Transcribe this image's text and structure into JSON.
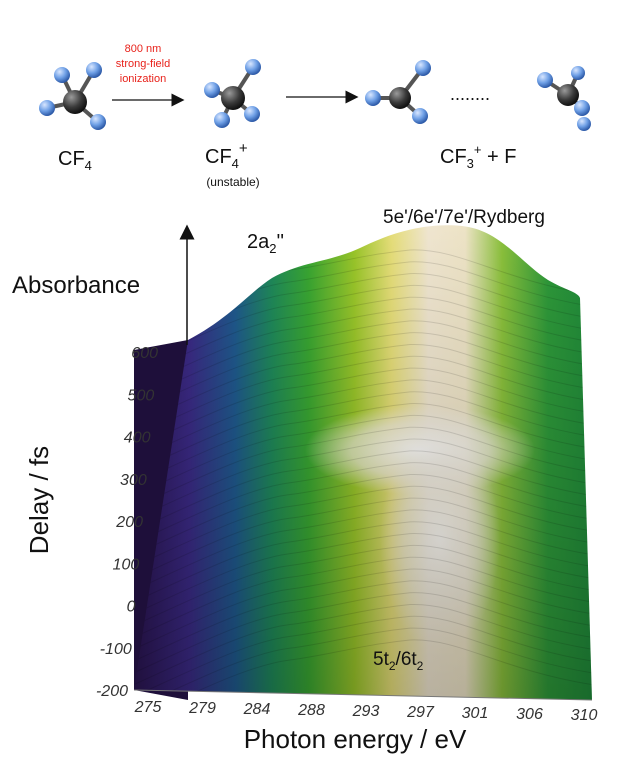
{
  "scheme": {
    "step1": {
      "label_main": "CF",
      "label_sub": "4"
    },
    "arrow1": {
      "line1": "800 nm",
      "line2": "strong-field",
      "line3": "ionization",
      "color": "#e8221b"
    },
    "step2": {
      "label_main": "CF",
      "label_sub": "4",
      "label_sup": "+",
      "note": "(unstable)"
    },
    "step3": {
      "label_main": "CF",
      "label_sub": "3",
      "label_sup": "+",
      "label_tail": " + F"
    },
    "dots": "........",
    "atom_colors": {
      "carbon": "#3a3a3a",
      "fluorine": "#6fa0e6"
    }
  },
  "chart_data": {
    "type": "surface",
    "title": "",
    "xlabel": "Photon energy / eV",
    "ylabel": "Delay / fs",
    "zlabel": "Absorbance",
    "x_ticks": [
      "275",
      "279",
      "284",
      "288",
      "293",
      "297",
      "301",
      "306",
      "310"
    ],
    "y_ticks": [
      "-200",
      "-100",
      "0",
      "100",
      "200",
      "300",
      "400",
      "500",
      "600"
    ],
    "xlim": [
      275,
      310
    ],
    "ylim": [
      -200,
      600
    ],
    "annotations": [
      {
        "text_main": "2a",
        "text_sub": "2",
        "text_tail": "''",
        "x": 287,
        "y": 600
      },
      {
        "text": "5e'/6e'/7e'/Rydberg",
        "x": 297,
        "y": 600
      },
      {
        "text_main": "5t",
        "text_sub": "2",
        "text_mid": "/6t",
        "text_sub2": "2",
        "x": 299,
        "y": -200
      }
    ],
    "colormap": [
      "#2a1450",
      "#3b2a86",
      "#1f5a8e",
      "#1f8a5a",
      "#3aa832",
      "#9cc82a",
      "#e8e07a",
      "#f2e8d2",
      "#ffffff"
    ]
  }
}
